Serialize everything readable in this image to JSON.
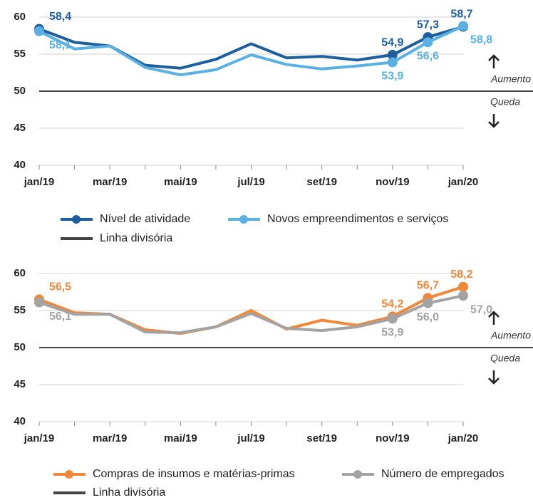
{
  "chart_data": [
    {
      "type": "line",
      "categories": [
        "jan/19",
        null,
        "mar/19",
        null,
        "mai/19",
        null,
        "jul/19",
        null,
        "set/19",
        null,
        "nov/19",
        null,
        "jan/20"
      ],
      "series": [
        {
          "name": "Nível de atividade",
          "color": "#1d5f9e",
          "values": [
            58.4,
            56.6,
            56.1,
            53.5,
            53.1,
            54.3,
            56.4,
            54.5,
            54.7,
            54.2,
            54.9,
            57.3,
            58.7
          ],
          "value_labels": [
            "58,4",
            null,
            null,
            null,
            null,
            null,
            null,
            null,
            null,
            null,
            "54,9",
            "57,3",
            "58,7"
          ]
        },
        {
          "name": "Novos empreendimentos e serviços",
          "color": "#5aafe3",
          "values": [
            58.1,
            55.7,
            56.1,
            53.2,
            52.2,
            52.9,
            54.9,
            53.6,
            53.0,
            53.4,
            53.9,
            56.6,
            58.8
          ],
          "value_labels": [
            "58,1",
            null,
            null,
            null,
            null,
            null,
            null,
            null,
            null,
            null,
            "53,9",
            "56,6",
            "58,8"
          ]
        }
      ],
      "reference_line": {
        "name": "Linha divisória",
        "value": 50,
        "color": "#444444"
      },
      "annotations": [
        "Aumento",
        "Queda"
      ],
      "ylim": [
        40,
        60
      ],
      "yticks": [
        40,
        45,
        50,
        55,
        60
      ],
      "grid": true
    },
    {
      "type": "line",
      "categories": [
        "jan/19",
        null,
        "mar/19",
        null,
        "mai/19",
        null,
        "jul/19",
        null,
        "set/19",
        null,
        "nov/19",
        null,
        "jan/20"
      ],
      "series": [
        {
          "name": "Compras de insumos e matérias-primas",
          "color": "#f0883a",
          "values": [
            56.5,
            54.7,
            54.5,
            52.4,
            51.9,
            52.8,
            55.0,
            52.5,
            53.7,
            53.0,
            54.2,
            56.7,
            58.2
          ],
          "value_labels": [
            "56,5",
            null,
            null,
            null,
            null,
            null,
            null,
            null,
            null,
            null,
            "54,2",
            "56,7",
            "58,2"
          ]
        },
        {
          "name": "Número de empregados",
          "color": "#a3a3a3",
          "values": [
            56.1,
            54.5,
            54.5,
            52.1,
            52.0,
            52.8,
            54.6,
            52.6,
            52.3,
            52.8,
            53.9,
            56.0,
            57.0
          ],
          "value_labels": [
            "56,1",
            null,
            null,
            null,
            null,
            null,
            null,
            null,
            null,
            null,
            "53,9",
            "56,0",
            "57,0"
          ]
        }
      ],
      "reference_line": {
        "name": "Linha divisória",
        "value": 50,
        "color": "#444444"
      },
      "annotations": [
        "Aumento",
        "Queda"
      ],
      "ylim": [
        40,
        60
      ],
      "yticks": [
        40,
        45,
        50,
        55,
        60
      ],
      "grid": true
    }
  ]
}
